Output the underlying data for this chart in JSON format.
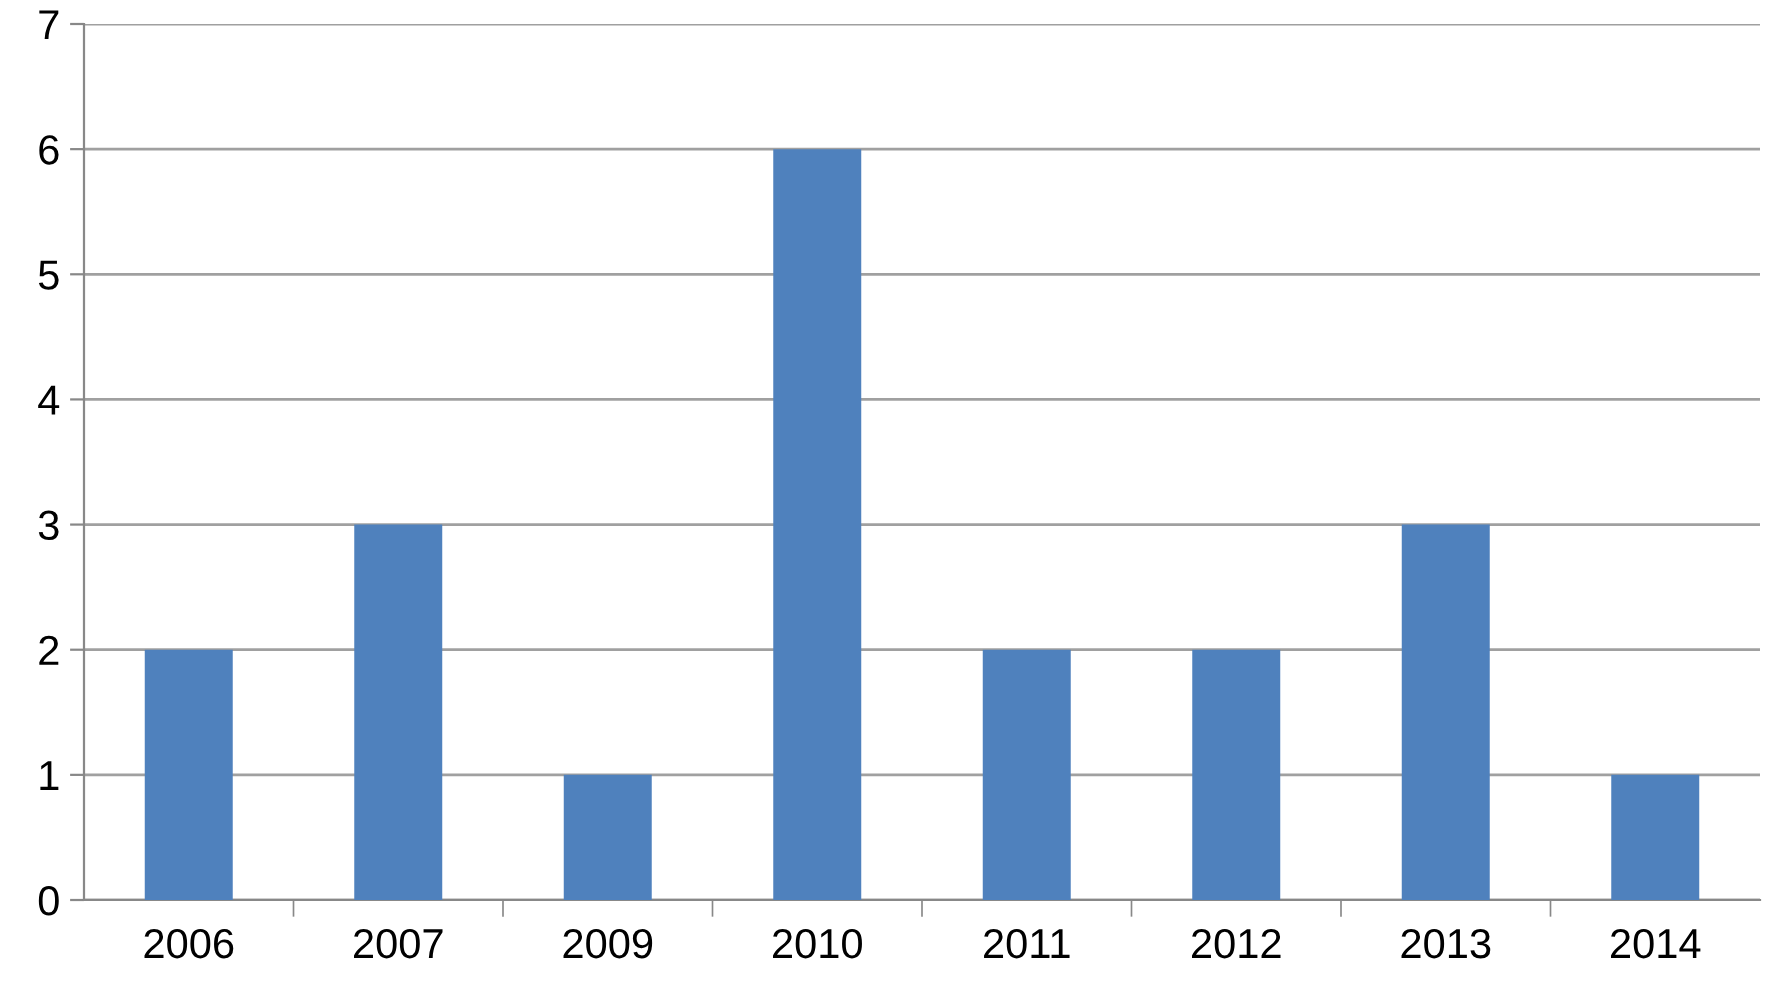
{
  "chart_data": {
    "type": "bar",
    "categories": [
      "2006",
      "2007",
      "2009",
      "2010",
      "2011",
      "2012",
      "2013",
      "2014"
    ],
    "values": [
      2,
      3,
      1,
      6,
      2,
      2,
      3,
      1
    ],
    "color": "#4f81bd",
    "ylim": [
      0,
      7
    ],
    "yticks": [
      0,
      1,
      2,
      3,
      4,
      5,
      6,
      7
    ],
    "grid": "y",
    "legend": false
  }
}
